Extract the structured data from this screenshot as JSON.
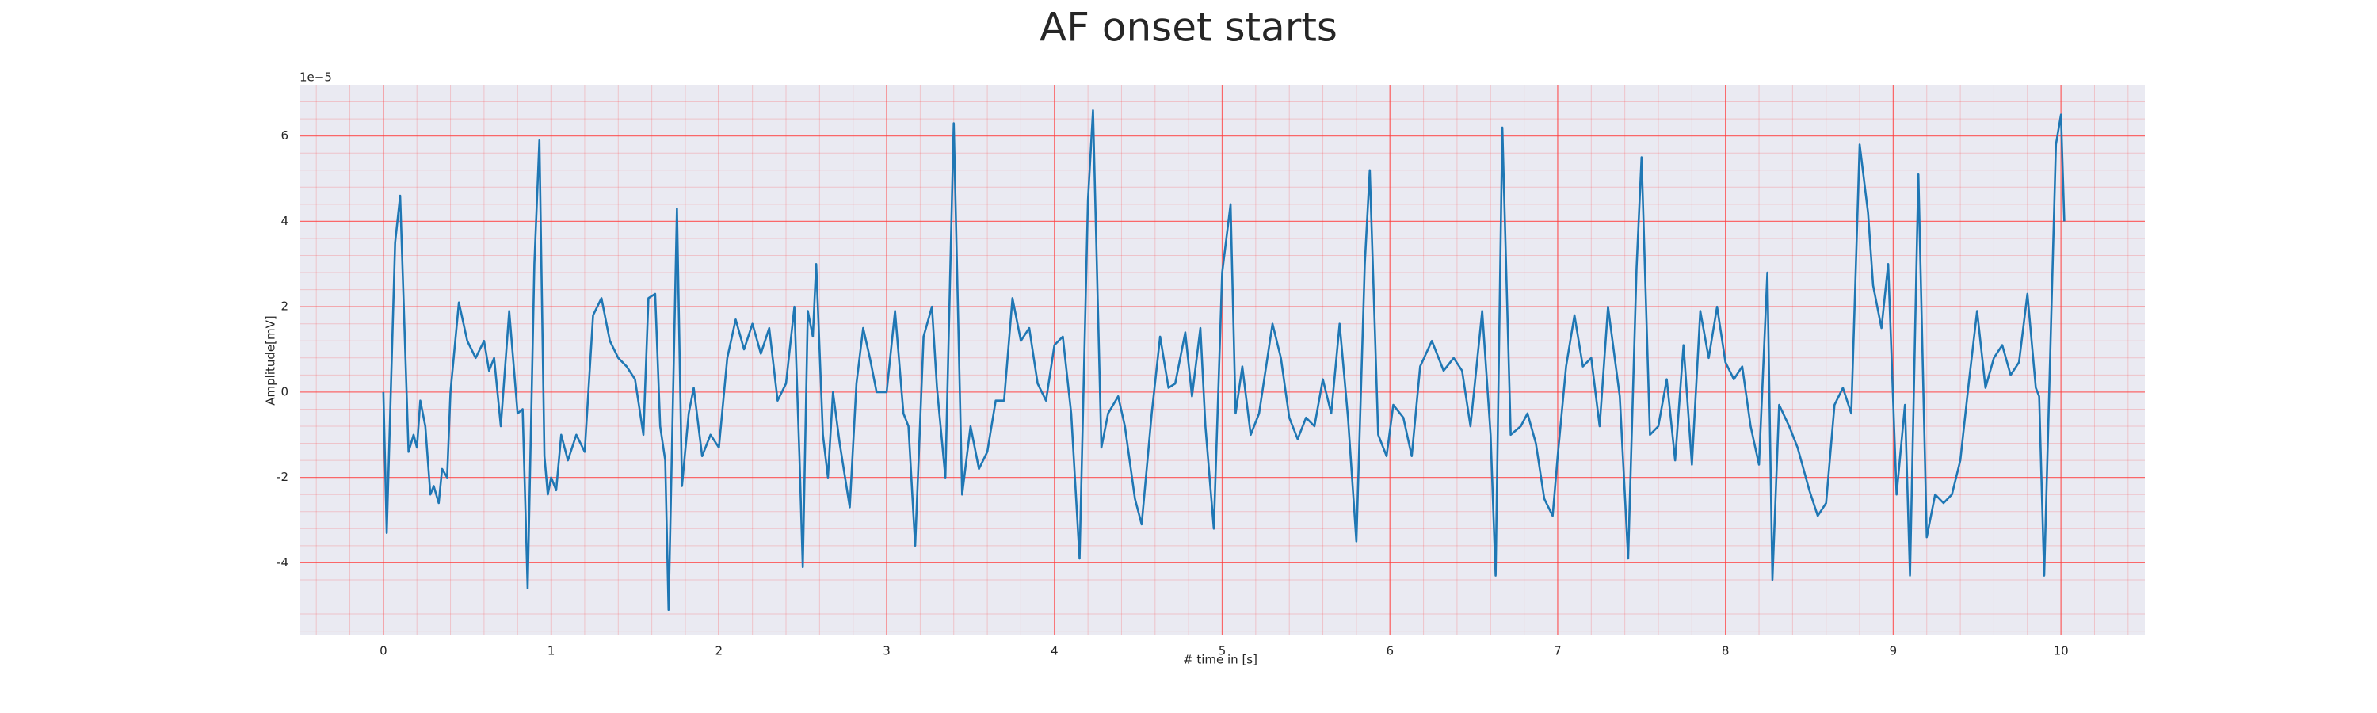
{
  "chart_data": {
    "type": "line",
    "title": "AF onset starts",
    "x_label": "# time in [s]",
    "y_label": "Amplitude[mV]",
    "y_offset_label": "1e−5",
    "xlim": [
      -0.5,
      10.5
    ],
    "ylim": [
      -5.7,
      7.2
    ],
    "xticks": [
      0,
      1,
      2,
      3,
      4,
      5,
      6,
      7,
      8,
      9,
      10
    ],
    "yticks": [
      -4,
      -2,
      0,
      2,
      4,
      6
    ],
    "grid": true,
    "grid_color": "#ff3b3b",
    "background": "#eaeaf2",
    "series": [
      {
        "color": "#1f77b4",
        "x": [
          0,
          0.02,
          0.07,
          0.1,
          0.13,
          0.15,
          0.18,
          0.2,
          0.22,
          0.25,
          0.28,
          0.3,
          0.33,
          0.35,
          0.38,
          0.4,
          0.45,
          0.5,
          0.55,
          0.6,
          0.63,
          0.66,
          0.7,
          0.75,
          0.8,
          0.83,
          0.86,
          0.9,
          0.93,
          0.96,
          0.98,
          1.0,
          1.03,
          1.06,
          1.1,
          1.15,
          1.2,
          1.25,
          1.3,
          1.35,
          1.4,
          1.45,
          1.5,
          1.55,
          1.58,
          1.62,
          1.65,
          1.68,
          1.7,
          1.75,
          1.78,
          1.82,
          1.85,
          1.9,
          1.95,
          2.0,
          2.05,
          2.1,
          2.15,
          2.2,
          2.25,
          2.3,
          2.35,
          2.4,
          2.45,
          2.48,
          2.5,
          2.53,
          2.56,
          2.58,
          2.62,
          2.65,
          2.68,
          2.72,
          2.78,
          2.82,
          2.86,
          2.9,
          2.94,
          3.0,
          3.05,
          3.1,
          3.13,
          3.17,
          3.22,
          3.27,
          3.3,
          3.35,
          3.4,
          3.45,
          3.5,
          3.55,
          3.6,
          3.65,
          3.7,
          3.75,
          3.8,
          3.85,
          3.9,
          3.95,
          4.0,
          4.05,
          4.1,
          4.15,
          4.2,
          4.23,
          4.28,
          4.32,
          4.38,
          4.42,
          4.48,
          4.52,
          4.58,
          4.63,
          4.68,
          4.72,
          4.78,
          4.82,
          4.87,
          4.9,
          4.95,
          5.0,
          5.05,
          5.08,
          5.12,
          5.17,
          5.22,
          5.3,
          5.35,
          5.4,
          5.45,
          5.5,
          5.55,
          5.6,
          5.65,
          5.7,
          5.75,
          5.8,
          5.85,
          5.88,
          5.93,
          5.98,
          6.02,
          6.08,
          6.13,
          6.18,
          6.25,
          6.32,
          6.38,
          6.43,
          6.48,
          6.55,
          6.6,
          6.63,
          6.67,
          6.72,
          6.78,
          6.82,
          6.87,
          6.92,
          6.97,
          7.0,
          7.05,
          7.1,
          7.15,
          7.2,
          7.25,
          7.3,
          7.37,
          7.42,
          7.47,
          7.5,
          7.55,
          7.6,
          7.65,
          7.7,
          7.75,
          7.8,
          7.85,
          7.9,
          7.95,
          8.0,
          8.05,
          8.1,
          8.15,
          8.2,
          8.25,
          8.28,
          8.32,
          8.38,
          8.43,
          8.5,
          8.55,
          8.6,
          8.65,
          8.7,
          8.75,
          8.8,
          8.85,
          8.88,
          8.93,
          8.97,
          9.02,
          9.07,
          9.1,
          9.15,
          9.2,
          9.25,
          9.3,
          9.35,
          9.4,
          9.45,
          9.5,
          9.55,
          9.6,
          9.65,
          9.7,
          9.75,
          9.8,
          9.85,
          9.87,
          9.9,
          9.97,
          10.0,
          10.02
        ],
        "values": [
          0,
          -3.3,
          3.5,
          4.6,
          1.0,
          -1.4,
          -1.0,
          -1.3,
          -0.2,
          -0.8,
          -2.4,
          -2.2,
          -2.6,
          -1.8,
          -2.0,
          0,
          2.1,
          1.2,
          0.8,
          1.2,
          0.5,
          0.8,
          -0.8,
          1.9,
          -0.5,
          -0.4,
          -4.6,
          3.0,
          5.9,
          -1.5,
          -2.4,
          -2.0,
          -2.3,
          -1.0,
          -1.6,
          -1.0,
          -1.4,
          1.8,
          2.2,
          1.2,
          0.8,
          0.6,
          0.3,
          -1.0,
          2.2,
          2.3,
          -0.8,
          -1.6,
          -5.1,
          4.3,
          -2.2,
          -0.5,
          0.1,
          -1.5,
          -1.0,
          -1.3,
          0.8,
          1.7,
          1.0,
          1.6,
          0.9,
          1.5,
          -0.2,
          0.2,
          2.0,
          -1.5,
          -4.1,
          1.9,
          1.3,
          3.0,
          -1.0,
          -2.0,
          0,
          -1.2,
          -2.7,
          0.2,
          1.5,
          0.8,
          0,
          0,
          1.9,
          -0.5,
          -0.8,
          -3.6,
          1.3,
          2.0,
          0.1,
          -2.0,
          6.3,
          -2.4,
          -0.8,
          -1.8,
          -1.4,
          -0.2,
          -0.2,
          2.2,
          1.2,
          1.5,
          0.2,
          -0.2,
          1.1,
          1.3,
          -0.5,
          -3.9,
          4.5,
          6.6,
          -1.3,
          -0.5,
          -0.1,
          -0.8,
          -2.5,
          -3.1,
          -0.5,
          1.3,
          0.1,
          0.2,
          1.4,
          -0.1,
          1.5,
          -0.8,
          -3.2,
          2.8,
          4.4,
          -0.5,
          0.6,
          -1.0,
          -0.5,
          1.6,
          0.8,
          -0.6,
          -1.1,
          -0.6,
          -0.8,
          0.3,
          -0.5,
          1.6,
          -0.6,
          -3.5,
          3.0,
          5.2,
          -1.0,
          -1.5,
          -0.3,
          -0.6,
          -1.5,
          0.6,
          1.2,
          0.5,
          0.8,
          0.5,
          -0.8,
          1.9,
          -1.0,
          -4.3,
          6.2,
          -1.0,
          -0.8,
          -0.5,
          -1.2,
          -2.5,
          -2.9,
          -1.5,
          0.6,
          1.8,
          0.6,
          0.8,
          -0.8,
          2.0,
          -0.1,
          -3.9,
          2.9,
          5.5,
          -1.0,
          -0.8,
          0.3,
          -1.6,
          1.1,
          -1.7,
          1.9,
          0.8,
          2.0,
          0.7,
          0.3,
          0.6,
          -0.8,
          -1.7,
          2.8,
          -4.4,
          -0.3,
          -0.8,
          -1.3,
          -2.3,
          -2.9,
          -2.6,
          -0.3,
          0.1,
          -0.5,
          5.8,
          4.2,
          2.5,
          1.5,
          3.0,
          -2.4,
          -0.3,
          -4.3,
          5.1,
          -3.4,
          -2.4,
          -2.6,
          -2.4,
          -1.6,
          0.2,
          1.9,
          0.1,
          0.8,
          1.1,
          0.4,
          0.7,
          2.3,
          0.1,
          -0.1,
          -4.3,
          5.8,
          6.5,
          4.0
        ]
      }
    ]
  }
}
